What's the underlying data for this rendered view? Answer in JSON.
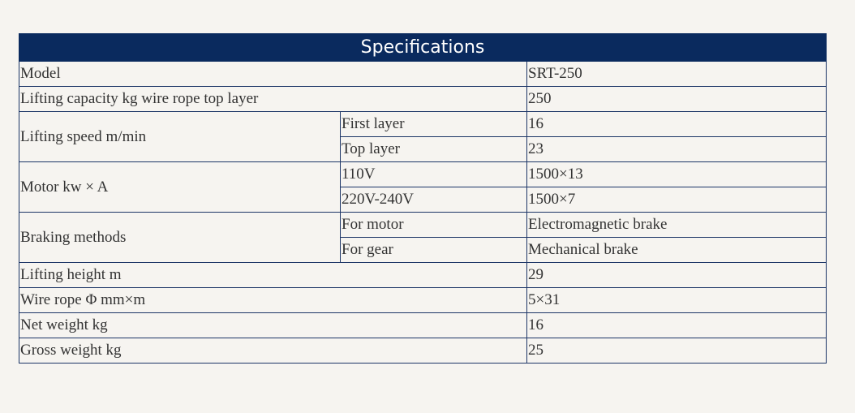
{
  "table": {
    "title": "Specifications",
    "rows": [
      [
        "Model",
        "SRT-250"
      ],
      [
        "Lifting capacity kg wire rope top layer",
        "250"
      ],
      [
        "Lifting speed m/min",
        "First layer",
        "16"
      ],
      [
        "Top layer",
        "23"
      ],
      [
        "Motor kw × A",
        "110V",
        "1500×13"
      ],
      [
        "220V-240V",
        "1500×7"
      ],
      [
        "Braking methods",
        "For motor",
        "Electromagnetic brake"
      ],
      [
        "For gear",
        "Mechanical brake"
      ],
      [
        "Lifting height m",
        "29"
      ],
      [
        "Wire rope Φ mm×m",
        "5×31"
      ],
      [
        "Net weight kg",
        "16"
      ],
      [
        "Gross weight kg",
        "25"
      ]
    ]
  }
}
